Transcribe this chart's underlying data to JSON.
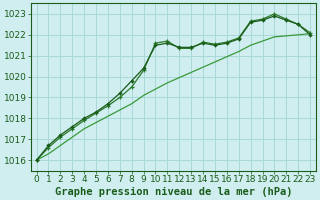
{
  "title": "Graphe pression niveau de la mer (hPa)",
  "bg_color": "#d0eef0",
  "grid_color": "#a8d8d8",
  "line_color_dark": "#1a5c1a",
  "line_color_mid": "#2a7a2a",
  "line_color_light": "#3a9a3a",
  "xlim": [
    -0.5,
    23.5
  ],
  "ylim": [
    1015.5,
    1023.5
  ],
  "yticks": [
    1016,
    1017,
    1018,
    1019,
    1020,
    1021,
    1022,
    1023
  ],
  "xticks": [
    0,
    1,
    2,
    3,
    4,
    5,
    6,
    7,
    8,
    9,
    10,
    11,
    12,
    13,
    14,
    15,
    16,
    17,
    18,
    19,
    20,
    21,
    22,
    23
  ],
  "series1_x": [
    0,
    1,
    2,
    3,
    4,
    5,
    6,
    7,
    8,
    9,
    10,
    11,
    12,
    13,
    14,
    15,
    16,
    17,
    18,
    19,
    20,
    21,
    22,
    23
  ],
  "series1_y": [
    1016.0,
    1016.7,
    1017.2,
    1017.6,
    1018.0,
    1018.3,
    1018.7,
    1019.2,
    1019.8,
    1020.4,
    1021.5,
    1021.6,
    1021.4,
    1021.4,
    1021.6,
    1021.5,
    1021.6,
    1021.8,
    1022.6,
    1022.7,
    1022.9,
    1022.7,
    1022.5,
    1022.0
  ],
  "series2_x": [
    0,
    1,
    2,
    3,
    4,
    5,
    6,
    7,
    8,
    9,
    10,
    11,
    12,
    13,
    14,
    15,
    16,
    17,
    18,
    19,
    20,
    21,
    22,
    23
  ],
  "series2_y": [
    1016.0,
    1016.6,
    1017.1,
    1017.5,
    1017.9,
    1018.25,
    1018.6,
    1019.0,
    1019.5,
    1020.3,
    1021.6,
    1021.7,
    1021.35,
    1021.35,
    1021.65,
    1021.55,
    1021.65,
    1021.85,
    1022.65,
    1022.75,
    1023.0,
    1022.75,
    1022.5,
    1022.1
  ],
  "series3_x": [
    0,
    1,
    2,
    3,
    4,
    5,
    6,
    7,
    8,
    9,
    10,
    11,
    12,
    13,
    14,
    15,
    16,
    17,
    18,
    19,
    20,
    21,
    22,
    23
  ],
  "series3_y": [
    1016.0,
    1016.3,
    1016.7,
    1017.1,
    1017.5,
    1017.8,
    1018.1,
    1018.4,
    1018.7,
    1019.1,
    1019.4,
    1019.7,
    1019.95,
    1020.2,
    1020.45,
    1020.7,
    1020.95,
    1021.2,
    1021.5,
    1021.7,
    1021.9,
    1021.95,
    1022.0,
    1022.05
  ],
  "title_fontsize": 7.5,
  "tick_fontsize": 6.5
}
